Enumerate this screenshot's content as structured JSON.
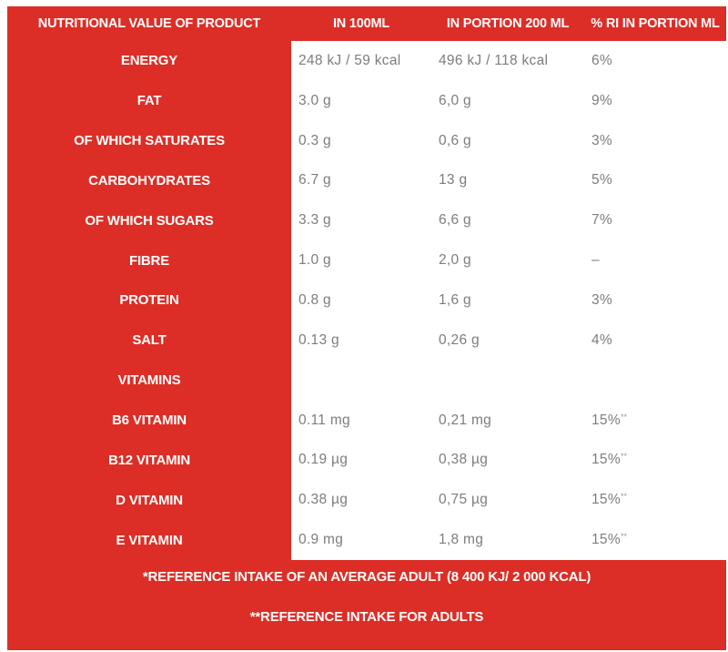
{
  "table": {
    "header": {
      "product": "NUTRITIONAL VALUE OF PRODUCT",
      "col_100ml": "IN 100ML",
      "col_portion": "IN PORTION 200 ML",
      "col_ri": "% RI IN PORTION ML"
    },
    "rows": [
      {
        "label": "ENERGY",
        "per100": "248 kJ / 59 kcal",
        "portion": "496 kJ / 118 kcal",
        "ri": "6%",
        "ri_sup": ""
      },
      {
        "label": "FAT",
        "per100": "3.0 g",
        "portion": "6,0 g",
        "ri": "9%",
        "ri_sup": ""
      },
      {
        "label": "OF WHICH SATURATES",
        "per100": "0.3 g",
        "portion": "0,6 g",
        "ri": "3%",
        "ri_sup": ""
      },
      {
        "label": "CARBOHYDRATES",
        "per100": "6.7 g",
        "portion": "13 g",
        "ri": "5%",
        "ri_sup": ""
      },
      {
        "label": "OF WHICH SUGARS",
        "per100": "3.3 g",
        "portion": "6,6 g",
        "ri": "7%",
        "ri_sup": ""
      },
      {
        "label": "FIBRE",
        "per100": "1.0 g",
        "portion": "2,0 g",
        "ri": "–",
        "ri_sup": ""
      },
      {
        "label": "PROTEIN",
        "per100": "0.8 g",
        "portion": "1,6 g",
        "ri": "3%",
        "ri_sup": ""
      },
      {
        "label": "SALT",
        "per100": "0.13 g",
        "portion": "0,26 g",
        "ri": "4%",
        "ri_sup": ""
      },
      {
        "label": "VITAMINS",
        "per100": "",
        "portion": "",
        "ri": "",
        "ri_sup": ""
      },
      {
        "label": "B6 VITAMIN",
        "per100": "0.11 mg",
        "portion": "0,21 mg",
        "ri": "15%",
        "ri_sup": "**"
      },
      {
        "label": "B12 VITAMIN",
        "per100": "0.19 µg",
        "portion": "0,38 µg",
        "ri": "15%",
        "ri_sup": "**"
      },
      {
        "label": "D VITAMIN",
        "per100": "0.38 µg",
        "portion": "0,75 µg",
        "ri": "15%",
        "ri_sup": "**"
      },
      {
        "label": "E VITAMIN",
        "per100": "0.9 mg",
        "portion": "1,8 mg",
        "ri": "15%",
        "ri_sup": "**"
      }
    ],
    "footnotes": {
      "line1": "*REFERENCE INTAKE OF AN AVERAGE ADULT (8 400 KJ/ 2 000 KCAL)",
      "line2": "**REFERENCE INTAKE FOR ADULTS"
    }
  },
  "colors": {
    "red": "#dc2e26",
    "value_gray": "#7d7d7d",
    "text_white": "#ffffff"
  }
}
